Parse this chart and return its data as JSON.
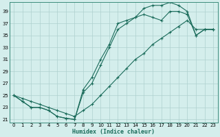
{
  "xlabel": "Humidex (Indice chaleur)",
  "bg_color": "#d4eeec",
  "grid_color": "#aed0ce",
  "line_color": "#1a6b5a",
  "xlim": [
    -0.5,
    23.5
  ],
  "ylim": [
    20.5,
    40.5
  ],
  "xticks": [
    0,
    1,
    2,
    3,
    4,
    5,
    6,
    7,
    8,
    9,
    10,
    11,
    12,
    13,
    14,
    15,
    16,
    17,
    18,
    19,
    20,
    21,
    22,
    23
  ],
  "yticks": [
    21,
    23,
    25,
    27,
    29,
    31,
    33,
    35,
    37,
    39
  ],
  "line1_x": [
    0,
    1,
    2,
    3,
    4,
    5,
    6,
    7,
    8,
    9,
    10,
    11,
    12,
    13,
    14,
    15,
    16,
    17,
    18,
    19,
    20,
    21,
    22,
    23
  ],
  "line1_y": [
    25,
    24,
    23,
    23,
    22.5,
    21.5,
    21.2,
    21,
    25.5,
    27,
    30,
    33,
    36,
    37,
    38,
    39.5,
    40,
    40,
    40.5,
    40,
    39,
    35,
    36,
    36
  ],
  "line2_x": [
    0,
    1,
    2,
    3,
    4,
    5,
    6,
    7,
    8,
    9,
    10,
    11,
    12,
    13,
    14,
    15,
    16,
    17,
    18,
    19,
    20,
    21,
    22,
    23
  ],
  "line2_y": [
    25,
    24,
    23,
    23,
    22.5,
    21.5,
    21.2,
    21,
    26,
    28,
    31,
    33.5,
    37,
    37.5,
    38,
    38.5,
    38,
    37.5,
    39,
    39,
    38.5,
    35,
    36,
    36
  ],
  "line3_x": [
    0,
    1,
    2,
    3,
    4,
    5,
    6,
    7,
    8,
    9,
    10,
    11,
    12,
    13,
    14,
    15,
    16,
    17,
    18,
    19,
    20,
    21,
    22,
    23
  ],
  "line3_y": [
    25,
    24.5,
    24,
    23.5,
    23,
    22.5,
    22,
    21.5,
    22.5,
    23.5,
    25,
    26.5,
    28,
    29.5,
    31,
    32,
    33.5,
    34.5,
    35.5,
    36.5,
    37.5,
    36,
    36,
    36
  ]
}
